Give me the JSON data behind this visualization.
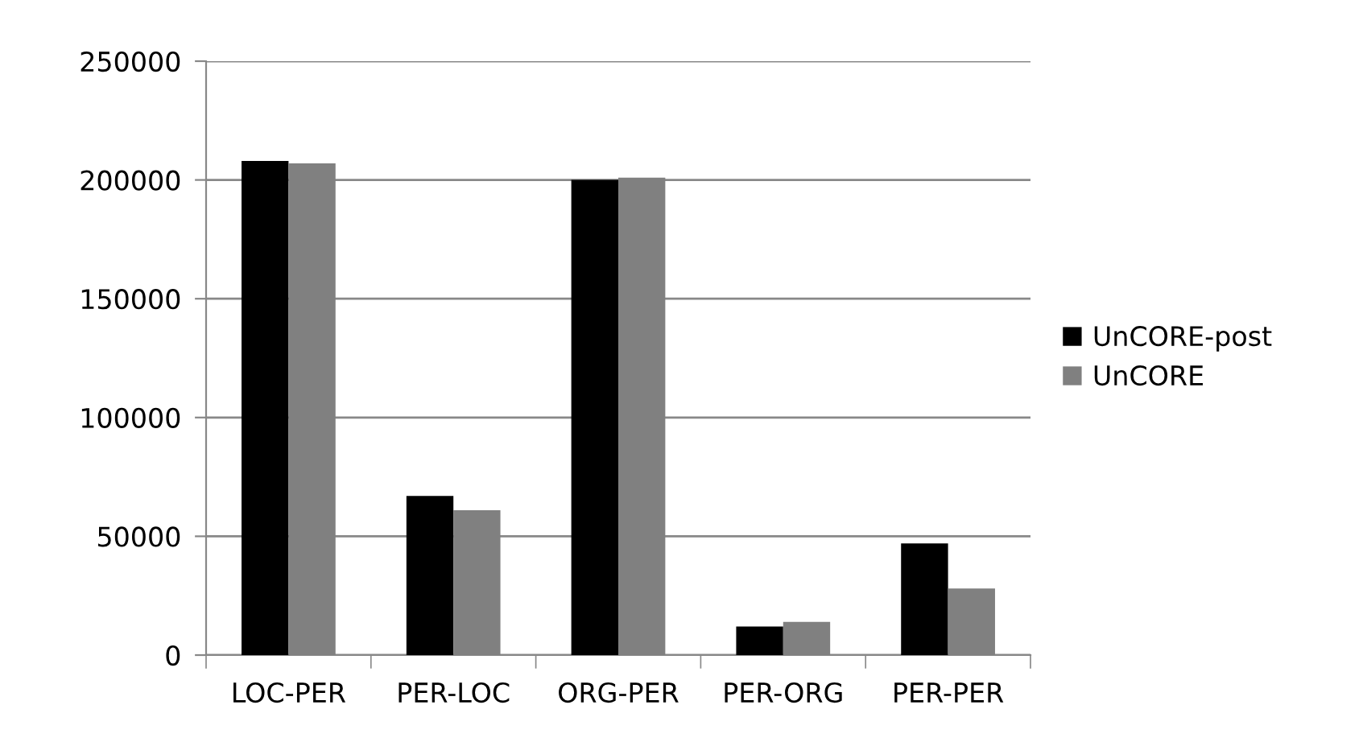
{
  "chart_data": {
    "type": "bar",
    "categories": [
      "LOC-PER",
      "PER-LOC",
      "ORG-PER",
      "PER-ORG",
      "PER-PER"
    ],
    "series": [
      {
        "name": "UnCORE-post",
        "color": "#000000",
        "values": [
          208000,
          67000,
          200000,
          12000,
          47000
        ]
      },
      {
        "name": "UnCORE",
        "color": "#808080",
        "values": [
          207000,
          61000,
          201000,
          14000,
          28000
        ]
      }
    ],
    "ylim": [
      0,
      250000
    ],
    "yticks": [
      0,
      50000,
      100000,
      150000,
      200000,
      250000
    ],
    "grid": "y",
    "legend": "right"
  }
}
